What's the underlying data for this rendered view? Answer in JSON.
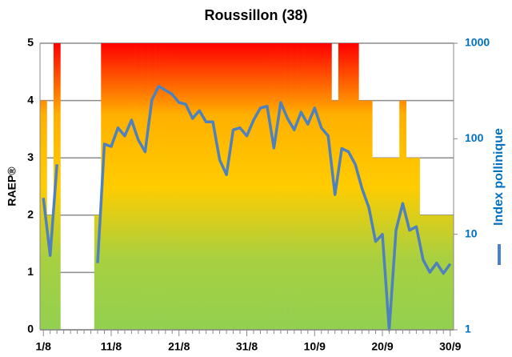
{
  "chart_data": {
    "type": "bar_line",
    "title": "Roussillon (38)",
    "ylabel": "RAEP®",
    "y2label": "Index pollinique",
    "categories": [
      "1/8",
      null,
      null,
      null,
      null,
      null,
      null,
      null,
      null,
      null,
      "11/8",
      null,
      null,
      null,
      null,
      null,
      null,
      null,
      null,
      null,
      "21/8",
      null,
      null,
      null,
      null,
      null,
      null,
      null,
      null,
      null,
      "31/8",
      null,
      null,
      null,
      null,
      null,
      null,
      null,
      null,
      null,
      "10/9",
      null,
      null,
      null,
      null,
      null,
      null,
      null,
      null,
      null,
      "20/9",
      null,
      null,
      null,
      null,
      null,
      null,
      null,
      null,
      null,
      "30/9"
    ],
    "series": [
      {
        "type": "bar",
        "gradient": [
          "#92d050",
          "#a8d040",
          "#ffcc00",
          "#ffb000",
          "#ff0000"
        ],
        "values": [
          4,
          2,
          5,
          0,
          0,
          0,
          0,
          0,
          2,
          5,
          5,
          5,
          5,
          5,
          5,
          5,
          5,
          5,
          5,
          5,
          5,
          5,
          5,
          5,
          5,
          5,
          5,
          5,
          5,
          5,
          5,
          5,
          5,
          5,
          5,
          5,
          5,
          5,
          5,
          5,
          5,
          5,
          5,
          4,
          5,
          5,
          5,
          4,
          4,
          3,
          3,
          3,
          3,
          4,
          3,
          3,
          2,
          2,
          2,
          2,
          2
        ]
      },
      {
        "type": "line",
        "axis": "y2",
        "color": "#4f81bd",
        "values": [
          24,
          6,
          54,
          null,
          null,
          null,
          null,
          null,
          5,
          88,
          83,
          130,
          107,
          157,
          97,
          73,
          254,
          354,
          323,
          292,
          240,
          230,
          163,
          197,
          150,
          150,
          60,
          42,
          124,
          130,
          107,
          157,
          210,
          219,
          80,
          240,
          163,
          124,
          190,
          142,
          210,
          130,
          107,
          26,
          79,
          73,
          54,
          30,
          19,
          8.4,
          10,
          1,
          11,
          21,
          11,
          12,
          5.4,
          4,
          5,
          3.9,
          4.9
        ]
      }
    ],
    "ylim": [
      0,
      5
    ],
    "yticks": [
      0,
      1,
      2,
      3,
      4,
      5
    ],
    "y2lim": [
      1,
      1000
    ],
    "y2ticks": [
      1,
      10,
      100,
      1000
    ],
    "y2log": true,
    "grid": true,
    "y2color": "#0070c0"
  }
}
